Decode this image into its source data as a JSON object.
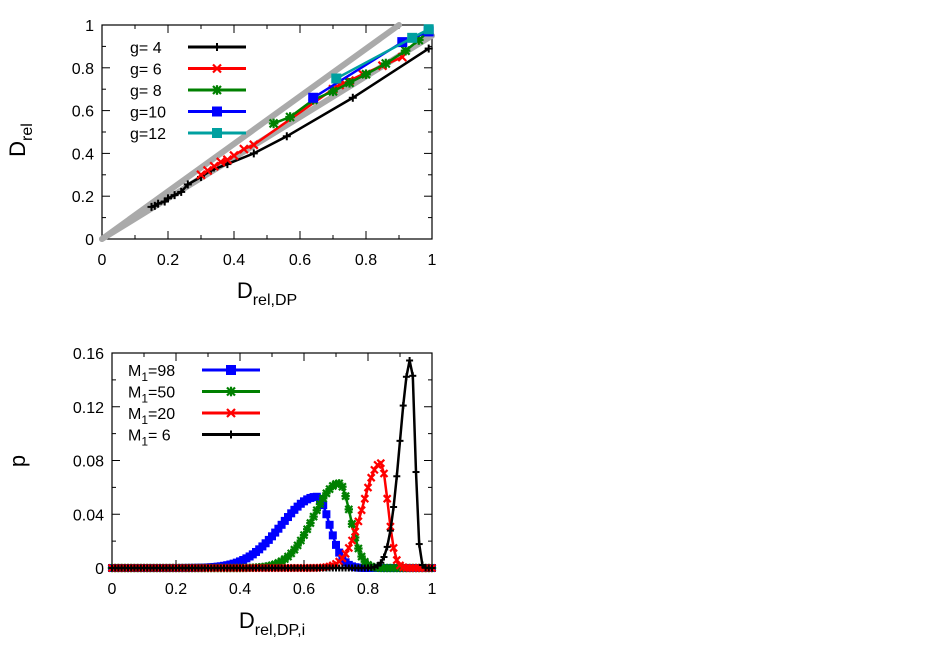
{
  "chart_data": [
    {
      "type": "line",
      "xlabel": {
        "main": "D",
        "sub": "rel,DP"
      },
      "ylabel": {
        "main": "D",
        "sub": "rel"
      },
      "xlim": [
        0,
        1
      ],
      "ylim": [
        0,
        1
      ],
      "x_ticks": [
        "0",
        "0.2",
        "0.4",
        "0.6",
        "0.8",
        "1"
      ],
      "y_ticks": [
        "0",
        "0.2",
        "0.4",
        "0.6",
        "0.8",
        "1"
      ],
      "x_tick_values": [
        0,
        0.2,
        0.4,
        0.6,
        0.8,
        1
      ],
      "y_tick_values": [
        0,
        0.2,
        0.4,
        0.6,
        0.8,
        1
      ],
      "legend_position": "top-left",
      "reference_lines": [
        {
          "color": "#aaaaaa",
          "x": [
            0,
            0.9
          ],
          "y": [
            0,
            1
          ]
        },
        {
          "color": "#aaaaaa",
          "x": [
            0,
            1
          ],
          "y": [
            0,
            0.95
          ]
        }
      ],
      "series": [
        {
          "name": "g=  4",
          "color": "#000000",
          "marker": "plus",
          "x": [
            0.15,
            0.16,
            0.17,
            0.19,
            0.2,
            0.22,
            0.24,
            0.26,
            0.3,
            0.33,
            0.38,
            0.46,
            0.56,
            0.76,
            0.99
          ],
          "y": [
            0.15,
            0.155,
            0.165,
            0.175,
            0.19,
            0.205,
            0.22,
            0.255,
            0.29,
            0.32,
            0.35,
            0.4,
            0.48,
            0.66,
            0.89
          ]
        },
        {
          "name": "g=  6",
          "color": "#ff0000",
          "marker": "x",
          "x": [
            0.3,
            0.32,
            0.34,
            0.36,
            0.38,
            0.4,
            0.43,
            0.46,
            0.7,
            0.72,
            0.75,
            0.79,
            0.85,
            0.91
          ],
          "y": [
            0.3,
            0.32,
            0.34,
            0.36,
            0.37,
            0.39,
            0.42,
            0.44,
            0.7,
            0.72,
            0.74,
            0.77,
            0.81,
            0.85
          ]
        },
        {
          "name": "g=  8",
          "color": "#008000",
          "marker": "star",
          "x": [
            0.52,
            0.57,
            0.64,
            0.7,
            0.75,
            0.8,
            0.86,
            0.92,
            0.96,
            0.99
          ],
          "y": [
            0.54,
            0.57,
            0.65,
            0.69,
            0.73,
            0.77,
            0.82,
            0.88,
            0.93,
            0.97
          ]
        },
        {
          "name": "g=10",
          "color": "#0000ff",
          "marker": "square",
          "x": [
            0.64,
            0.91,
            0.99
          ],
          "y": [
            0.66,
            0.92,
            0.97
          ]
        },
        {
          "name": "g=12",
          "color": "#00a0a0",
          "marker": "square",
          "x": [
            0.71,
            0.94,
            0.99
          ],
          "y": [
            0.75,
            0.94,
            0.98
          ]
        }
      ]
    },
    {
      "type": "line",
      "xlabel": {
        "main": "D",
        "sub": "rel,DP,i"
      },
      "ylabel": {
        "main": "p",
        "sub": ""
      },
      "xlim": [
        0,
        1
      ],
      "ylim": [
        0,
        0.16
      ],
      "x_ticks": [
        "0",
        "0.2",
        "0.4",
        "0.6",
        "0.8",
        "1"
      ],
      "y_ticks": [
        "0",
        "0.04",
        "0.08",
        "0.12",
        "0.16"
      ],
      "x_tick_values": [
        0,
        0.2,
        0.4,
        0.6,
        0.8,
        1
      ],
      "y_tick_values": [
        0,
        0.04,
        0.08,
        0.12,
        0.16
      ],
      "legend_position": "top-left",
      "series": [
        {
          "name": "M",
          "name_sub": "1",
          "name_rest": "=98",
          "color": "#0000ff",
          "marker": "square",
          "peak": 0.64,
          "height": 0.053,
          "sigma_left": 0.11,
          "sigma_right": 0.04
        },
        {
          "name": "M",
          "name_sub": "1",
          "name_rest": "=50",
          "color": "#008000",
          "marker": "star",
          "peak": 0.71,
          "height": 0.063,
          "sigma_left": 0.08,
          "sigma_right": 0.035
        },
        {
          "name": "M",
          "name_sub": "1",
          "name_rest": "=20",
          "color": "#ff0000",
          "marker": "x",
          "peak": 0.84,
          "height": 0.078,
          "sigma_left": 0.055,
          "sigma_right": 0.022
        },
        {
          "name": "M",
          "name_sub": "1",
          "name_rest": "=  6",
          "color": "#000000",
          "marker": "plus",
          "peak": 0.935,
          "height": 0.156,
          "sigma_left": 0.035,
          "sigma_right": 0.012
        }
      ]
    }
  ]
}
